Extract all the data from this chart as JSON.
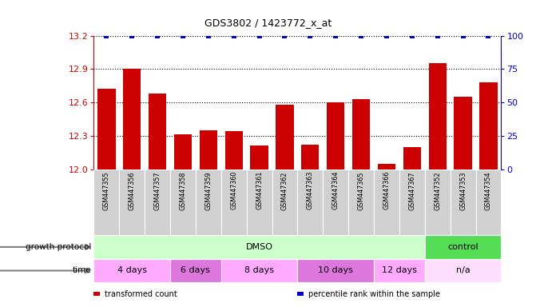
{
  "title": "GDS3802 / 1423772_x_at",
  "samples": [
    "GSM447355",
    "GSM447356",
    "GSM447357",
    "GSM447358",
    "GSM447359",
    "GSM447360",
    "GSM447361",
    "GSM447362",
    "GSM447363",
    "GSM447364",
    "GSM447365",
    "GSM447366",
    "GSM447367",
    "GSM447352",
    "GSM447353",
    "GSM447354"
  ],
  "red_values": [
    12.72,
    12.9,
    12.68,
    12.31,
    12.35,
    12.34,
    12.21,
    12.58,
    12.22,
    12.6,
    12.63,
    12.05,
    12.2,
    12.95,
    12.65,
    12.78
  ],
  "blue_values": [
    100,
    100,
    100,
    100,
    100,
    100,
    100,
    100,
    100,
    100,
    100,
    100,
    100,
    100,
    100,
    100
  ],
  "ylim_left": [
    12.0,
    13.2
  ],
  "ylim_right": [
    0,
    100
  ],
  "yticks_left": [
    12.0,
    12.3,
    12.6,
    12.9,
    13.2
  ],
  "yticks_right": [
    0,
    25,
    50,
    75,
    100
  ],
  "bar_color": "#cc0000",
  "dot_color": "#0000cc",
  "protocol_groups": [
    {
      "label": "DMSO",
      "start": 0,
      "end": 13,
      "color": "#ccffcc"
    },
    {
      "label": "control",
      "start": 13,
      "end": 16,
      "color": "#55dd55"
    }
  ],
  "time_groups": [
    {
      "label": "4 days",
      "start": 0,
      "end": 3,
      "color": "#ffaaff"
    },
    {
      "label": "6 days",
      "start": 3,
      "end": 5,
      "color": "#dd77dd"
    },
    {
      "label": "8 days",
      "start": 5,
      "end": 8,
      "color": "#ffaaff"
    },
    {
      "label": "10 days",
      "start": 8,
      "end": 11,
      "color": "#dd77dd"
    },
    {
      "label": "12 days",
      "start": 11,
      "end": 13,
      "color": "#ffaaff"
    },
    {
      "label": "n/a",
      "start": 13,
      "end": 16,
      "color": "#ffddff"
    }
  ],
  "legend_items": [
    {
      "label": "transformed count",
      "color": "#cc0000"
    },
    {
      "label": "percentile rank within the sample",
      "color": "#0000cc"
    }
  ],
  "tick_label_color_left": "#cc0000",
  "tick_label_color_right": "#0000cc",
  "xlabel_growth": "growth protocol",
  "xlabel_time": "time",
  "label_row_bg": "#d0d0d0",
  "title_fontsize": 9,
  "bar_width": 0.7
}
